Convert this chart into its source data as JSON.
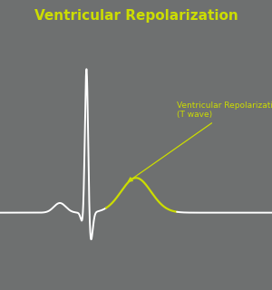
{
  "title": "Ventricular Repolarization",
  "title_color": "#ccdd00",
  "title_fontsize": 11,
  "background_color": "#6e7070",
  "ecg_color_white": "#ffffff",
  "ecg_color_yellow": "#ccdd00",
  "annotation_text": "Ventricular Repolarization\n(T wave)",
  "annotation_color": "#ccdd00",
  "annotation_fontsize": 6.5,
  "fig_width": 3.0,
  "fig_height": 3.2,
  "dpi": 100
}
